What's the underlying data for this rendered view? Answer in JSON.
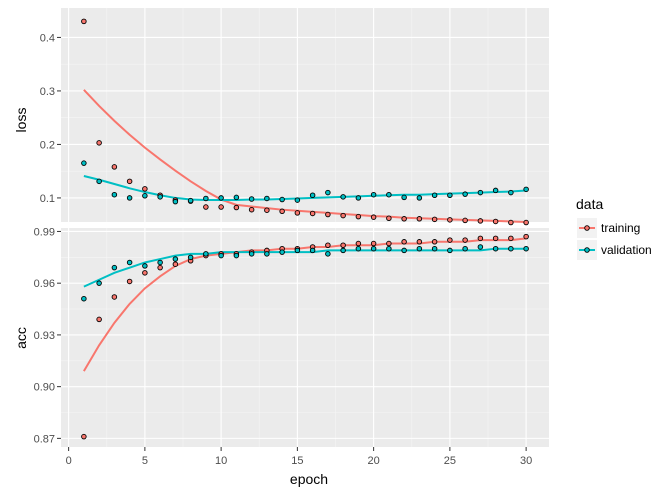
{
  "chart_data": {
    "type": "scatter",
    "facets": [
      {
        "name": "loss",
        "ylabel": "loss",
        "ylim": [
          0.055,
          0.455
        ],
        "yticks": [
          0.1,
          0.2,
          0.3,
          0.4
        ],
        "ytick_labels": [
          "0.1",
          "0.2",
          "0.3",
          "0.4"
        ],
        "series": [
          {
            "name": "training",
            "points": [
              0.43,
              0.203,
              0.158,
              0.131,
              0.117,
              0.105,
              0.096,
              0.094,
              0.083,
              0.083,
              0.082,
              0.078,
              0.077,
              0.075,
              0.072,
              0.071,
              0.069,
              0.067,
              0.065,
              0.064,
              0.062,
              0.061,
              0.061,
              0.06,
              0.059,
              0.058,
              0.057,
              0.056,
              0.054,
              0.054
            ],
            "smooth": [
              0.302,
              0.272,
              0.244,
              0.218,
              0.194,
              0.172,
              0.151,
              0.131,
              0.113,
              0.097,
              0.087,
              0.084,
              0.081,
              0.078,
              0.076,
              0.074,
              0.072,
              0.07,
              0.068,
              0.066,
              0.065,
              0.063,
              0.062,
              0.061,
              0.06,
              0.059,
              0.058,
              0.057,
              0.056,
              0.055
            ]
          },
          {
            "name": "validation",
            "points": [
              0.165,
              0.131,
              0.106,
              0.1,
              0.104,
              0.102,
              0.093,
              0.095,
              0.099,
              0.1,
              0.101,
              0.098,
              0.099,
              0.097,
              0.096,
              0.105,
              0.11,
              0.102,
              0.1,
              0.106,
              0.106,
              0.101,
              0.1,
              0.105,
              0.105,
              0.107,
              0.11,
              0.114,
              0.11,
              0.116
            ],
            "smooth": [
              0.141,
              0.134,
              0.126,
              0.118,
              0.111,
              0.105,
              0.1,
              0.097,
              0.096,
              0.096,
              0.096,
              0.097,
              0.097,
              0.098,
              0.099,
              0.1,
              0.101,
              0.102,
              0.103,
              0.104,
              0.105,
              0.106,
              0.106,
              0.107,
              0.108,
              0.109,
              0.11,
              0.111,
              0.112,
              0.114
            ]
          }
        ]
      },
      {
        "name": "acc",
        "ylabel": "acc",
        "ylim": [
          0.865,
          0.992
        ],
        "yticks": [
          0.87,
          0.9,
          0.93,
          0.96,
          0.99
        ],
        "ytick_labels": [
          "0.87",
          "0.90",
          "0.93",
          "0.96",
          "0.99"
        ],
        "series": [
          {
            "name": "training",
            "points": [
              0.871,
              0.939,
              0.952,
              0.961,
              0.966,
              0.969,
              0.971,
              0.973,
              0.976,
              0.977,
              0.977,
              0.978,
              0.979,
              0.98,
              0.98,
              0.981,
              0.982,
              0.982,
              0.983,
              0.983,
              0.983,
              0.984,
              0.984,
              0.984,
              0.985,
              0.985,
              0.986,
              0.986,
              0.986,
              0.987
            ],
            "smooth": [
              0.909,
              0.924,
              0.937,
              0.948,
              0.957,
              0.964,
              0.97,
              0.974,
              0.976,
              0.977,
              0.978,
              0.979,
              0.979,
              0.98,
              0.98,
              0.981,
              0.981,
              0.982,
              0.982,
              0.982,
              0.983,
              0.983,
              0.983,
              0.984,
              0.984,
              0.984,
              0.985,
              0.985,
              0.985,
              0.986
            ]
          },
          {
            "name": "validation",
            "points": [
              0.951,
              0.96,
              0.969,
              0.972,
              0.97,
              0.972,
              0.974,
              0.975,
              0.977,
              0.976,
              0.976,
              0.977,
              0.977,
              0.978,
              0.979,
              0.979,
              0.977,
              0.979,
              0.98,
              0.98,
              0.98,
              0.979,
              0.98,
              0.98,
              0.979,
              0.98,
              0.981,
              0.98,
              0.98,
              0.98
            ],
            "smooth": [
              0.958,
              0.962,
              0.966,
              0.969,
              0.972,
              0.974,
              0.976,
              0.977,
              0.977,
              0.978,
              0.978,
              0.978,
              0.978,
              0.978,
              0.978,
              0.978,
              0.979,
              0.979,
              0.979,
              0.979,
              0.979,
              0.979,
              0.979,
              0.979,
              0.979,
              0.979,
              0.979,
              0.98,
              0.98,
              0.98
            ]
          }
        ]
      }
    ],
    "xlabel": "epoch",
    "xlim": [
      -0.5,
      31.5
    ],
    "xticks": [
      0,
      5,
      10,
      15,
      20,
      25,
      30
    ],
    "xtick_labels": [
      "0",
      "5",
      "10",
      "15",
      "20",
      "25",
      "30"
    ],
    "legend": {
      "title": "data",
      "placement": "right",
      "entries": [
        "training",
        "validation"
      ]
    },
    "colors": {
      "training": "#F8766D",
      "validation": "#00BFC4",
      "panel_bg": "#EBEBEB",
      "grid_major": "#FFFFFF",
      "point_outline": "#000000"
    },
    "grid": true
  }
}
